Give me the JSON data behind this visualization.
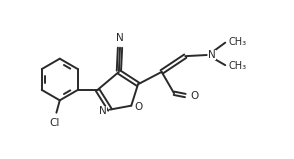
{
  "figsize": [
    2.94,
    1.59
  ],
  "dpi": 100,
  "bg_color": "#ffffff",
  "line_color": "#2a2a2a",
  "line_width": 1.4,
  "font_size": 7.5,
  "xlim": [
    0,
    5.2
  ],
  "ylim": [
    0,
    2.0
  ]
}
